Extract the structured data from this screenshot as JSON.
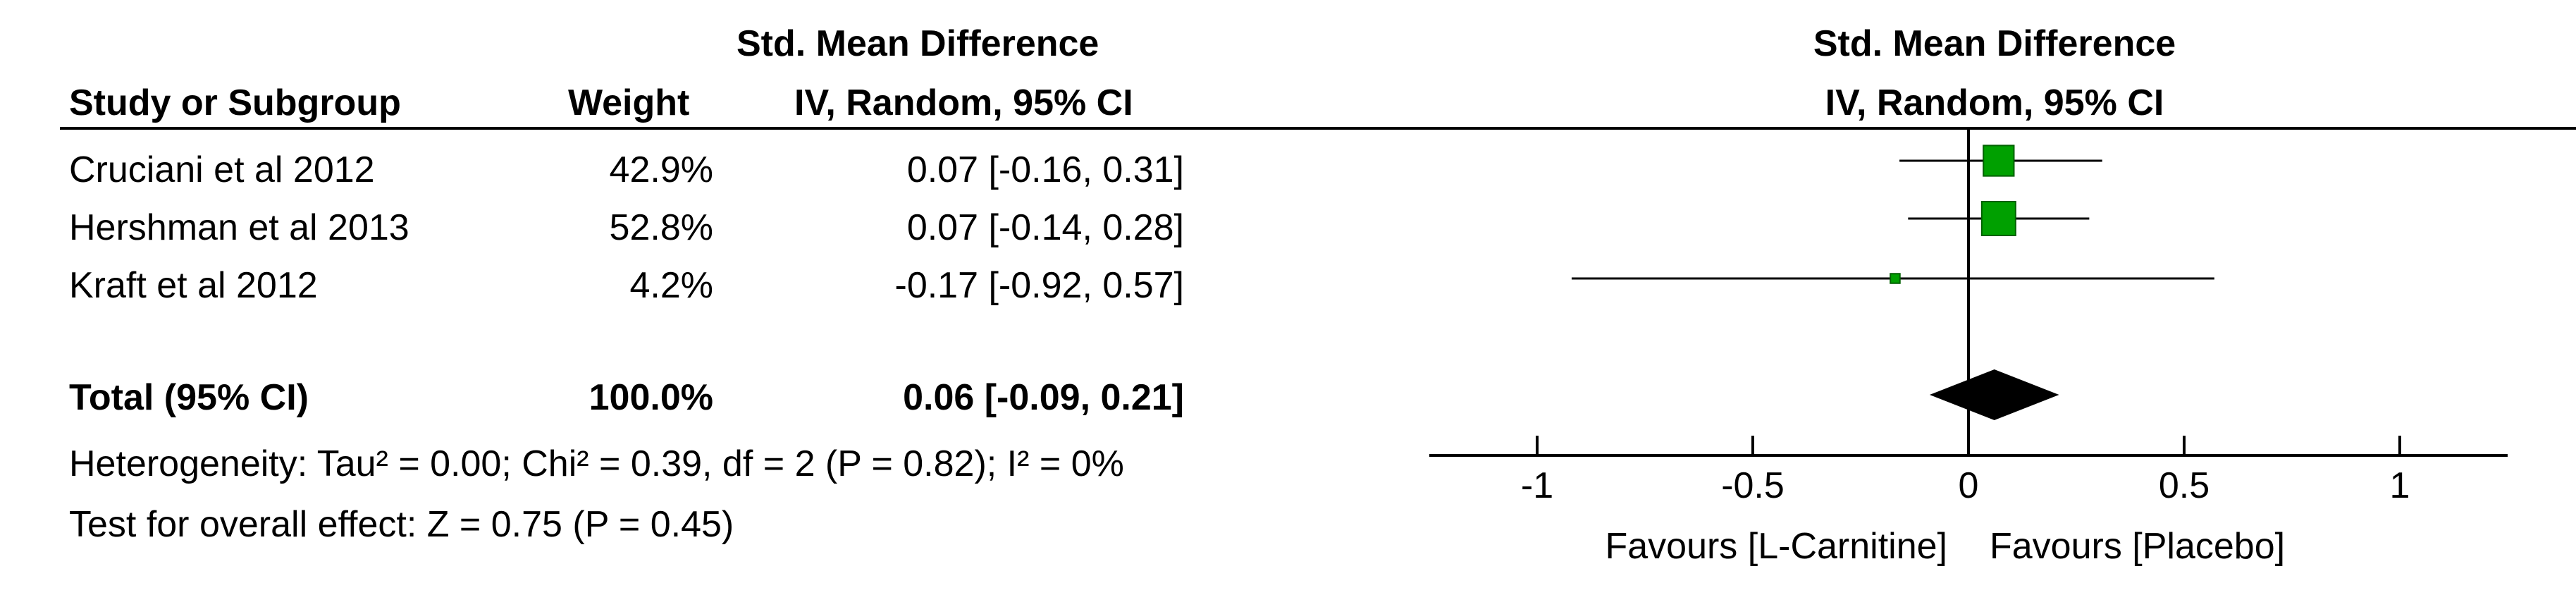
{
  "header": {
    "effect_measure_line1": "Std. Mean Difference",
    "col_study": "Study or Subgroup",
    "col_weight": "Weight",
    "col_ci": "IV, Random, 95% CI",
    "plot_title_line1": "Std. Mean Difference",
    "plot_title_line2": "IV, Random, 95% CI"
  },
  "studies": [
    {
      "name": "Cruciani et al 2012",
      "weight": "42.9%",
      "ci_text": "0.07 [-0.16, 0.31]"
    },
    {
      "name": "Hershman et al 2013",
      "weight": "52.8%",
      "ci_text": "0.07 [-0.14, 0.28]"
    },
    {
      "name": "Kraft et al 2012",
      "weight": "4.2%",
      "ci_text": "-0.17 [-0.92, 0.57]"
    }
  ],
  "total": {
    "label": "Total (95% CI)",
    "weight": "100.0%",
    "ci_text": "0.06 [-0.09, 0.21]"
  },
  "heterogeneity": "Heterogeneity: Tau² = 0.00; Chi² = 0.39, df = 2 (P = 0.82); I² = 0%",
  "overall_effect": "Test for overall effect: Z = 0.75 (P = 0.45)",
  "favours_left": "Favours [L-Carnitine]",
  "favours_right": "Favours [Placebo]",
  "chart_data": {
    "type": "forest",
    "xlim": [
      -1.25,
      1.25
    ],
    "xticks": [
      -1,
      -0.5,
      0,
      0.5,
      1
    ],
    "xtick_labels": [
      "-1",
      "-0.5",
      "0",
      "0.5",
      "1"
    ],
    "colors": {
      "study_marker": "#00a000",
      "study_marker_border": "#006000",
      "pooled": "#000000"
    },
    "points": [
      {
        "label": "Cruciani et al 2012",
        "estimate": 0.07,
        "lower": -0.16,
        "upper": 0.31,
        "weight": 42.9
      },
      {
        "label": "Hershman et al 2013",
        "estimate": 0.07,
        "lower": -0.14,
        "upper": 0.28,
        "weight": 52.8
      },
      {
        "label": "Kraft et al 2012",
        "estimate": -0.17,
        "lower": -0.92,
        "upper": 0.57,
        "weight": 4.2
      }
    ],
    "pooled": {
      "estimate": 0.06,
      "lower": -0.09,
      "upper": 0.21
    }
  }
}
